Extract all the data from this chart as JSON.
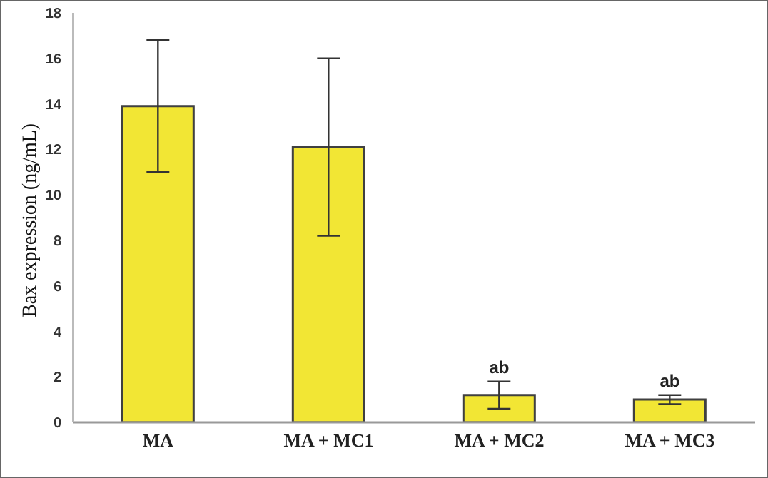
{
  "chart_data": {
    "type": "bar",
    "ylabel": "Bax expression (ng/mL)",
    "categories": [
      "MA",
      "MA + MC1",
      "MA + MC2",
      "MA + MC3"
    ],
    "values": [
      13.9,
      12.1,
      1.2,
      1.0
    ],
    "errors": [
      [
        11.0,
        16.8
      ],
      [
        8.2,
        16.0
      ],
      [
        0.6,
        1.8
      ],
      [
        0.8,
        1.2
      ]
    ],
    "color": "#f2e634",
    "ylim": [
      0,
      18
    ],
    "yticks": [
      0,
      2,
      4,
      6,
      8,
      10,
      12,
      14,
      16,
      18
    ],
    "grid": false,
    "annotations": [
      {
        "text": "ab",
        "x": "MA + MC2",
        "y": 1.8
      },
      {
        "text": "ab",
        "x": "MA + MC3",
        "y": 1.2
      }
    ]
  }
}
